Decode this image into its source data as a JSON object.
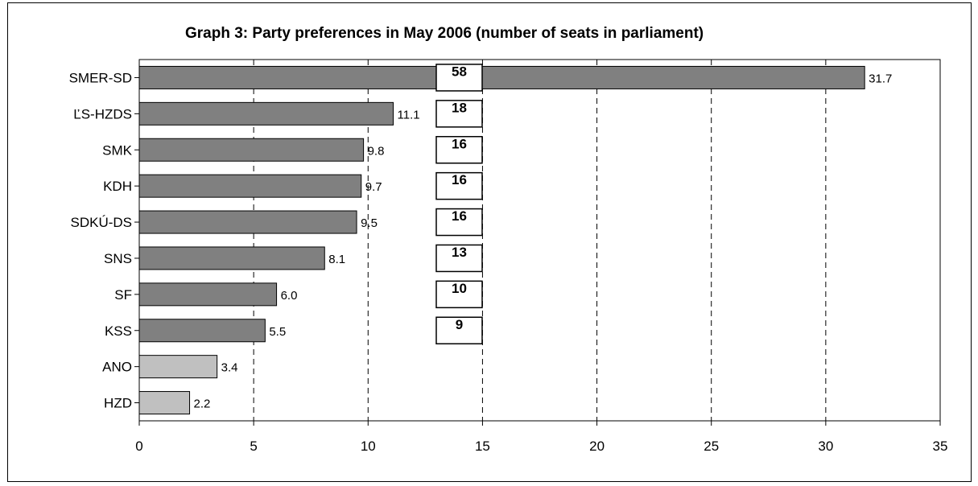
{
  "chart_data": {
    "type": "bar",
    "orientation": "horizontal",
    "title": "Graph 3: Party preferences in May 2006 (number of seats in parliament)",
    "xlabel": "",
    "ylabel": "",
    "xlim": [
      0,
      35
    ],
    "x_ticks": [
      "0",
      "5",
      "10",
      "15",
      "20",
      "25",
      "30",
      "35"
    ],
    "grid": "vertical dashed",
    "categories": [
      "SMER-SD",
      "ĽS-HZDS",
      "SMK",
      "KDH",
      "SDKÚ-DS",
      "SNS",
      "SF",
      "KSS",
      "ANO",
      "HZD"
    ],
    "values": [
      31.7,
      11.1,
      9.8,
      9.7,
      9.5,
      8.1,
      6.0,
      5.5,
      3.4,
      2.2
    ],
    "value_labels": [
      "31.7",
      "11.1",
      "9.8",
      "9.7",
      "9.5",
      "8.1",
      "6.0",
      "5.5",
      "3.4",
      "2.2"
    ],
    "seats": [
      "58",
      "18",
      "16",
      "16",
      "16",
      "13",
      "10",
      "9",
      null,
      null
    ],
    "colors": {
      "in_parliament": "#808080",
      "outside": "#c0c0c0"
    },
    "bar_colors": [
      "#808080",
      "#808080",
      "#808080",
      "#808080",
      "#808080",
      "#808080",
      "#808080",
      "#808080",
      "#c0c0c0",
      "#c0c0c0"
    ]
  }
}
